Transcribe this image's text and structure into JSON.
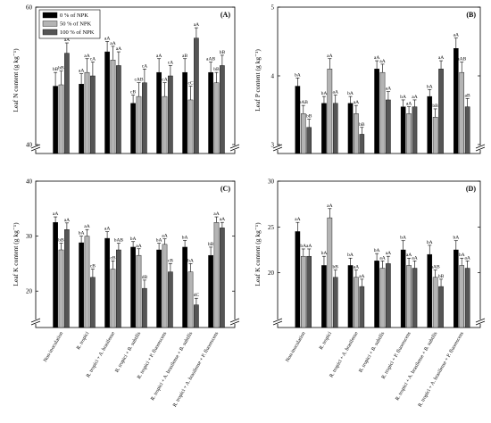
{
  "legend": [
    {
      "label": "0 % of NPK",
      "color": "#000000"
    },
    {
      "label": "50 % of NPK",
      "color": "#b4b4b4"
    },
    {
      "label": "100 % of NPK",
      "color": "#555555"
    }
  ],
  "categories": [
    "Non-inoculation",
    "R. tropici",
    "R. tropici + A. brasilense",
    "R. tropici + B. subtilis",
    "R. tropici + P. fluorescens",
    "R. tropici + A. brasilense + B. subtilis",
    "R. tropici + A. brasilense + P. fluorescens"
  ],
  "chart_data": [
    {
      "type": "bar",
      "panel": "(A)",
      "ylabel": "Leaf N content (g kg⁻¹)",
      "ylim": [
        40,
        60
      ],
      "yticks": [
        40,
        60
      ],
      "axis_break": true,
      "series": [
        {
          "name": "0 % of NPK",
          "values": [
            48.5,
            48.8,
            53.5,
            46.0,
            50.5,
            50.5,
            50.5
          ],
          "errors": [
            2.0,
            1.5,
            1.5,
            1.2,
            2.0,
            2.0,
            1.5
          ],
          "labels": [
            "bB",
            "aA",
            "aA",
            "cB",
            "aA",
            "aB",
            "aAB"
          ]
        },
        {
          "name": "50 % of NPK",
          "values": [
            48.7,
            50.5,
            52.3,
            47.0,
            47.0,
            46.5,
            49.0
          ],
          "errors": [
            2.0,
            2.0,
            2.0,
            2.0,
            2.0,
            2.0,
            1.5
          ],
          "labels": [
            "bB",
            "aA",
            "aA",
            "cAB",
            "cA",
            "cC",
            "bB"
          ]
        },
        {
          "name": "100 % of NPK",
          "values": [
            53.3,
            50.0,
            51.5,
            49.0,
            50.0,
            55.5,
            51.5
          ],
          "errors": [
            1.5,
            2.0,
            2.0,
            2.0,
            1.5,
            1.5,
            1.5
          ],
          "labels": [
            "aA",
            "cA",
            "aA",
            "cA",
            "cA",
            "aA",
            "bB"
          ]
        }
      ]
    },
    {
      "type": "bar",
      "panel": "(B)",
      "ylabel": "Leaf P content (g kg⁻¹)",
      "ylim": [
        3,
        5
      ],
      "yticks": [
        3,
        4,
        5
      ],
      "axis_break": true,
      "series": [
        {
          "name": "0 % of NPK",
          "values": [
            3.85,
            3.6,
            3.6,
            4.1,
            3.55,
            3.7,
            4.4
          ],
          "errors": [
            0.12,
            0.1,
            0.1,
            0.12,
            0.1,
            0.1,
            0.15
          ],
          "labels": [
            "bA",
            "bA",
            "bA",
            "aA",
            "bA",
            "bA",
            "aA"
          ]
        },
        {
          "name": "50 % of NPK",
          "values": [
            3.45,
            4.1,
            3.45,
            4.05,
            3.45,
            3.4,
            4.05
          ],
          "errors": [
            0.12,
            0.15,
            0.12,
            0.12,
            0.1,
            0.12,
            0.15
          ],
          "labels": [
            "bAB",
            "aA",
            "aA",
            "aA",
            "aA",
            "bB",
            "aAB"
          ]
        },
        {
          "name": "100 % of NPK",
          "values": [
            3.25,
            3.6,
            3.15,
            3.65,
            3.55,
            4.1,
            3.55
          ],
          "errors": [
            0.12,
            0.12,
            0.1,
            0.12,
            0.1,
            0.12,
            0.12
          ],
          "labels": [
            "bB",
            "aA",
            "bB",
            "aA",
            "aA",
            "aA",
            "aB"
          ]
        }
      ]
    },
    {
      "type": "bar",
      "panel": "(C)",
      "ylabel": "Leaf K content (g kg⁻¹)",
      "ylim": [
        15,
        40
      ],
      "yticks": [
        20,
        30,
        40
      ],
      "axis_break": true,
      "series": [
        {
          "name": "0 % of NPK",
          "values": [
            32.5,
            28.8,
            29.6,
            28.0,
            27.5,
            28.0,
            26.5
          ],
          "errors": [
            1.0,
            1.2,
            1.2,
            1.0,
            1.2,
            1.2,
            1.5
          ],
          "labels": [
            "aA",
            "bA",
            "aA",
            "bA",
            "bA",
            "bA",
            "bB"
          ]
        },
        {
          "name": "50 % of NPK",
          "values": [
            27.5,
            30.0,
            24.0,
            26.5,
            28.5,
            23.5,
            32.5
          ],
          "errors": [
            1.2,
            1.2,
            1.5,
            1.2,
            1.0,
            1.5,
            1.0
          ],
          "labels": [
            "bB",
            "aA",
            "cB",
            "aA",
            "aA",
            "bA",
            "aA"
          ]
        },
        {
          "name": "100 % of NPK",
          "values": [
            31.2,
            22.5,
            27.5,
            20.5,
            23.5,
            17.5,
            31.5
          ],
          "errors": [
            1.2,
            1.5,
            1.2,
            1.5,
            1.5,
            1.2,
            1.0
          ],
          "labels": [
            "aA",
            "cB",
            "bAB",
            "dB",
            "cB",
            "dC",
            "aA"
          ]
        }
      ]
    },
    {
      "type": "bar",
      "panel": "(D)",
      "ylabel": "Leaf K content (g kg⁻¹)",
      "ylim": [
        15,
        30
      ],
      "yticks": [
        20,
        25,
        30
      ],
      "axis_break": true,
      "series": [
        {
          "name": "0 % of NPK",
          "values": [
            24.5,
            20.8,
            20.8,
            21.3,
            22.5,
            22.0,
            22.5
          ],
          "errors": [
            1.0,
            1.0,
            0.8,
            0.8,
            1.0,
            1.0,
            1.0
          ],
          "labels": [
            "aA",
            "bA",
            "bA",
            "bA",
            "bA",
            "bA",
            "bA"
          ]
        },
        {
          "name": "50 % of NPK",
          "values": [
            21.8,
            26.0,
            19.5,
            20.5,
            20.8,
            19.5,
            20.8
          ],
          "errors": [
            0.8,
            1.0,
            0.8,
            0.8,
            0.8,
            0.8,
            0.8
          ],
          "labels": [
            "bA",
            "aA",
            "aA",
            "aA",
            "aA",
            "aAB",
            "bA"
          ]
        },
        {
          "name": "100 % of NPK",
          "values": [
            21.8,
            19.5,
            18.5,
            21.0,
            20.5,
            18.5,
            20.5
          ],
          "errors": [
            0.8,
            0.8,
            0.8,
            0.8,
            0.8,
            0.8,
            0.8
          ],
          "labels": [
            "aA",
            "bB",
            "aA",
            "aA",
            "aA",
            "bB",
            "aA"
          ]
        }
      ]
    }
  ]
}
